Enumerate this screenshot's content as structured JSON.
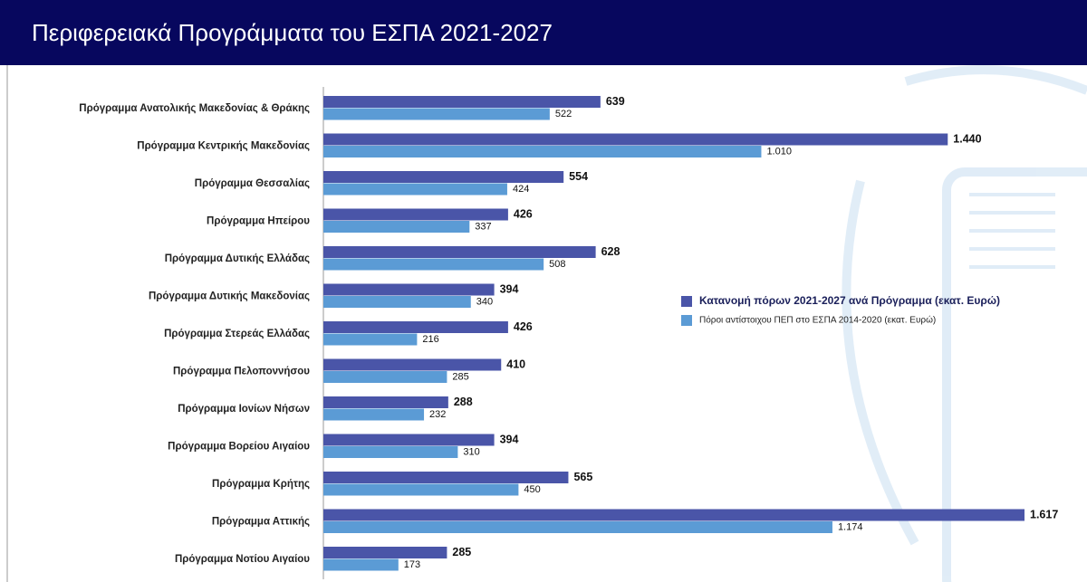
{
  "chart_data": {
    "type": "bar",
    "orientation": "horizontal",
    "title": "Περιφερειακά Προγράμματα του ΕΣΠΑ 2021-2027",
    "categories": [
      "Πρόγραμμα Ανατολικής Μακεδονίας & Θράκης",
      "Πρόγραμμα Κεντρικής Μακεδονίας",
      "Πρόγραμμα Θεσσαλίας",
      "Πρόγραμμα Ηπείρου",
      "Πρόγραμμα Δυτικής Ελλάδας",
      "Πρόγραμμα Δυτικής Μακεδονίας",
      "Πρόγραμμα Στερεάς Ελλάδας",
      "Πρόγραμμα Πελοποννήσου",
      "Πρόγραμμα Ιονίων Νήσων",
      "Πρόγραμμα Βορείου Αιγαίου",
      "Πρόγραμμα Κρήτης",
      "Πρόγραμμα Αττικής",
      "Πρόγραμμα Νοτίου Αιγαίου"
    ],
    "series": [
      {
        "name": "Κατανομή πόρων 2021-2027 ανά Πρόγραμμα (εκατ. Ευρώ)",
        "color": "#4a55a8",
        "values": [
          639,
          1440,
          554,
          426,
          628,
          394,
          426,
          410,
          288,
          394,
          565,
          1617,
          285
        ],
        "value_labels": [
          "639",
          "1.440",
          "554",
          "426",
          "628",
          "394",
          "426",
          "410",
          "288",
          "394",
          "565",
          "1.617",
          "285"
        ]
      },
      {
        "name": "Πόροι αντίστοιχου ΠΕΠ στο ΕΣΠΑ 2014-2020 (εκατ. Ευρώ)",
        "color": "#5b9bd5",
        "values": [
          522,
          1010,
          424,
          337,
          508,
          340,
          216,
          285,
          232,
          310,
          450,
          1174,
          173
        ],
        "value_labels": [
          "522",
          "1.010",
          "424",
          "337",
          "508",
          "340",
          "216",
          "285",
          "232",
          "310",
          "450",
          "1.174",
          "173"
        ]
      }
    ]
  }
}
